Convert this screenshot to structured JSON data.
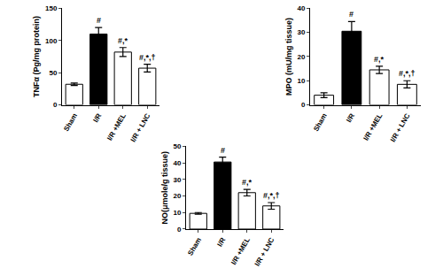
{
  "chart_data": [
    {
      "type": "bar",
      "ylabel": "TNFα (Pg/mg protein)",
      "categories": [
        "Sham",
        "I/R",
        "I/R +MEL",
        "I/R + LNC"
      ],
      "values": [
        32,
        110,
        82,
        57
      ],
      "errors": [
        2,
        10,
        7,
        6
      ],
      "annotations": [
        null,
        "#",
        "#,*",
        "#,*,†"
      ],
      "colors": [
        "#ffffff",
        "#000000",
        "#ffffff",
        "#ffffff"
      ],
      "ylim": [
        0,
        150
      ],
      "yticks": [
        0,
        50,
        100,
        150
      ],
      "grid": false
    },
    {
      "type": "bar",
      "ylabel": "MPO (mU/mg tissue)",
      "categories": [
        "Sham",
        "I/R",
        "I/R +MEL",
        "I/R + LNC"
      ],
      "values": [
        4,
        30.5,
        14.5,
        8.5
      ],
      "errors": [
        1,
        4,
        1.5,
        1.5
      ],
      "annotations": [
        null,
        "#",
        "#,*",
        "#,*,†"
      ],
      "colors": [
        "#ffffff",
        "#000000",
        "#ffffff",
        "#ffffff"
      ],
      "ylim": [
        0,
        40
      ],
      "yticks": [
        0,
        10,
        20,
        30,
        40
      ],
      "grid": false
    },
    {
      "type": "bar",
      "ylabel": "NO(μmole/g tissue)",
      "categories": [
        "Sham",
        "I/R",
        "I/R +MEL",
        "I/R + LNC"
      ],
      "values": [
        9.5,
        40.5,
        22,
        14
      ],
      "errors": [
        0.5,
        3,
        2,
        2
      ],
      "annotations": [
        null,
        "#",
        "#,*",
        "#,*,†"
      ],
      "colors": [
        "#ffffff",
        "#000000",
        "#ffffff",
        "#ffffff"
      ],
      "ylim": [
        0,
        50
      ],
      "yticks": [
        0,
        10,
        20,
        30,
        40,
        50
      ],
      "grid": false
    }
  ]
}
